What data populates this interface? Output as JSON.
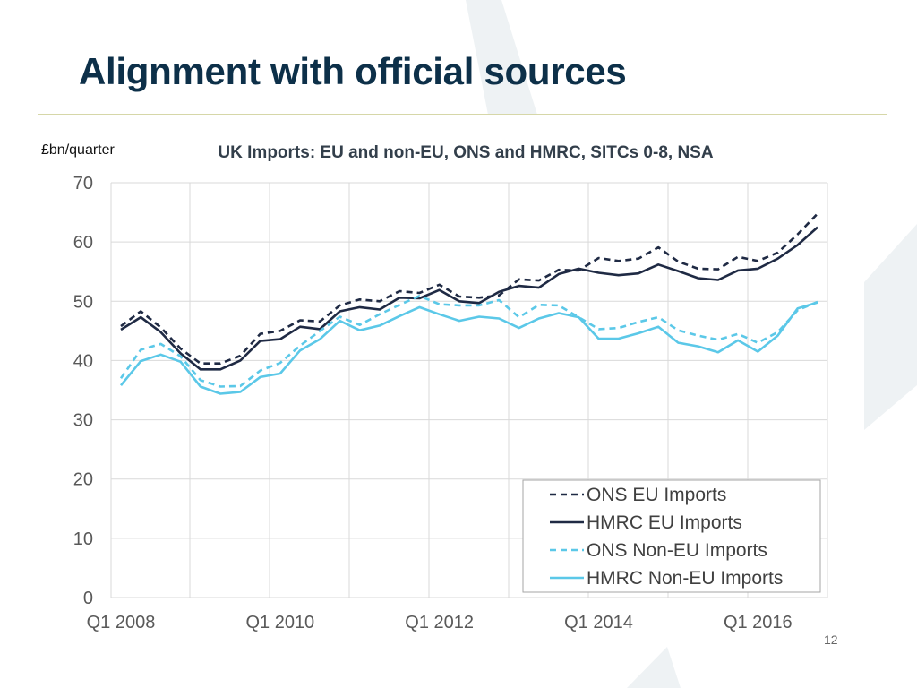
{
  "slide": {
    "title": "Alignment with official sources",
    "page_number": "12"
  },
  "colors": {
    "title": "#0d3049",
    "ons_eu": "#1f2a44",
    "hmrc_eu": "#1f2a44",
    "ons_non_eu": "#5bc8e8",
    "hmrc_non_eu": "#5bc8e8",
    "grid": "#d9d9d9"
  },
  "chart_data": {
    "type": "line",
    "title": "UK Imports: EU and non-EU, ONS and HMRC, SITCs 0-8, NSA",
    "unit_label": "£bn/quarter",
    "ylim": [
      0,
      70
    ],
    "yticks": [
      0,
      10,
      20,
      30,
      40,
      50,
      60,
      70
    ],
    "x_tick_labels": [
      "Q1 2008",
      "Q1 2010",
      "Q1 2012",
      "Q1 2014",
      "Q1 2016"
    ],
    "x": [
      "Q1 2008",
      "Q2 2008",
      "Q3 2008",
      "Q4 2008",
      "Q1 2009",
      "Q2 2009",
      "Q3 2009",
      "Q4 2009",
      "Q1 2010",
      "Q2 2010",
      "Q3 2010",
      "Q4 2010",
      "Q1 2011",
      "Q2 2011",
      "Q3 2011",
      "Q4 2011",
      "Q1 2012",
      "Q2 2012",
      "Q3 2012",
      "Q4 2012",
      "Q1 2013",
      "Q2 2013",
      "Q3 2013",
      "Q4 2013",
      "Q1 2014",
      "Q2 2014",
      "Q3 2014",
      "Q4 2014",
      "Q1 2015",
      "Q2 2015",
      "Q3 2015",
      "Q4 2015",
      "Q1 2016",
      "Q2 2016",
      "Q3 2016",
      "Q4 2016"
    ],
    "grid": true,
    "legend_position": "bottom-right",
    "series": [
      {
        "name": "ONS EU Imports",
        "style": "dashed",
        "color": "#1f2a44",
        "values": [
          45.8,
          48.3,
          45.6,
          42.0,
          39.5,
          39.5,
          40.8,
          44.5,
          45.0,
          46.8,
          46.6,
          49.3,
          50.3,
          50.0,
          51.7,
          51.4,
          52.8,
          50.8,
          50.6,
          51.0,
          53.7,
          53.5,
          55.3,
          55.2,
          57.3,
          56.8,
          57.2,
          59.1,
          56.7,
          55.5,
          55.4,
          57.5,
          56.8,
          58.2,
          61.3,
          64.8
        ]
      },
      {
        "name": "HMRC EU Imports",
        "style": "solid",
        "color": "#1f2a44",
        "values": [
          45.2,
          47.3,
          44.8,
          41.2,
          38.5,
          38.5,
          40.0,
          43.3,
          43.6,
          45.7,
          45.3,
          48.3,
          49.0,
          48.6,
          50.6,
          50.5,
          51.9,
          50.0,
          49.7,
          51.6,
          52.6,
          52.3,
          54.6,
          55.5,
          54.8,
          54.4,
          54.7,
          56.2,
          55.1,
          53.9,
          53.6,
          55.2,
          55.5,
          57.2,
          59.5,
          62.5
        ]
      },
      {
        "name": "ONS Non-EU Imports",
        "style": "dashed",
        "color": "#5bc8e8",
        "values": [
          37.0,
          41.8,
          42.8,
          40.7,
          36.7,
          35.6,
          35.7,
          38.3,
          39.6,
          42.5,
          45.0,
          47.4,
          46.0,
          47.8,
          49.4,
          50.9,
          49.5,
          49.3,
          49.3,
          50.2,
          47.3,
          49.4,
          49.3,
          47.3,
          45.3,
          45.5,
          46.5,
          47.3,
          45.1,
          44.2,
          43.5,
          44.5,
          43.0,
          44.8,
          48.5,
          49.9
        ]
      },
      {
        "name": "HMRC Non-EU Imports",
        "style": "solid",
        "color": "#5bc8e8",
        "values": [
          35.8,
          39.9,
          41.0,
          39.8,
          35.6,
          34.4,
          34.7,
          37.2,
          37.8,
          41.7,
          43.6,
          46.7,
          45.1,
          45.9,
          47.5,
          49.0,
          47.8,
          46.7,
          47.4,
          47.1,
          45.5,
          47.1,
          48.0,
          47.3,
          43.7,
          43.7,
          44.6,
          45.7,
          43.0,
          42.4,
          41.4,
          43.4,
          41.5,
          44.2,
          48.8,
          49.8
        ]
      }
    ]
  }
}
